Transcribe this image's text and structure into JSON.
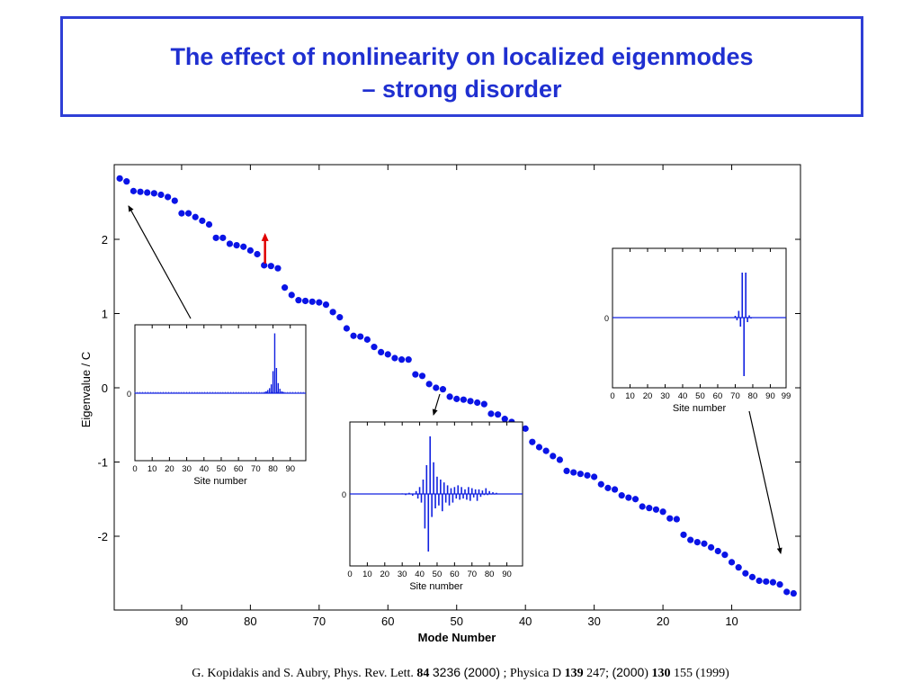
{
  "slide": {
    "title_line1": "The effect of nonlinearity on localized eigenmodes",
    "title_line2": "– strong disorder"
  },
  "citation": {
    "part1": "G. Kopidakis and S. Aubry, Phys. Rev. Lett. ",
    "vol1": "84",
    "page1": "3236",
    "year1": "(2000)",
    "part2": " ; Physica D ",
    "vol2": "139",
    "page2": " 247;  ",
    "year2": "(2000",
    "close": ")",
    "vol3": "130",
    "rest": " 155 (1999)"
  },
  "colors": {
    "title": "#1f2fd0",
    "dots": "#0a14e6",
    "trace": "#1020e0",
    "arrow_red": "#e00000"
  },
  "chart_data": [
    {
      "type": "scatter",
      "title": "",
      "xlabel": "Mode Number",
      "ylabel": "Eigenvalue / C",
      "xlim": [
        0,
        99
      ],
      "x_reversed": true,
      "ylim": [
        -3,
        3
      ],
      "xticks": [
        90,
        80,
        70,
        60,
        50,
        40,
        30,
        20,
        10
      ],
      "yticks": [
        2,
        1,
        0,
        -1,
        -2
      ],
      "grid": false,
      "x": [
        99,
        98,
        97,
        96,
        95,
        94,
        93,
        92,
        91,
        90,
        89,
        88,
        87,
        86,
        85,
        84,
        83,
        82,
        81,
        80,
        79,
        78,
        77,
        76,
        75,
        74,
        73,
        72,
        71,
        70,
        69,
        68,
        67,
        66,
        65,
        64,
        63,
        62,
        61,
        60,
        59,
        58,
        57,
        56,
        55,
        54,
        53,
        52,
        51,
        50,
        49,
        48,
        47,
        46,
        45,
        44,
        43,
        42,
        41,
        40,
        39,
        38,
        37,
        36,
        35,
        34,
        33,
        32,
        31,
        30,
        29,
        28,
        27,
        26,
        25,
        24,
        23,
        22,
        21,
        20,
        19,
        18,
        17,
        16,
        15,
        14,
        13,
        12,
        11,
        10,
        9,
        8,
        7,
        6,
        5,
        4,
        3,
        2,
        1
      ],
      "y": [
        2.82,
        2.78,
        2.65,
        2.64,
        2.63,
        2.62,
        2.6,
        2.57,
        2.52,
        2.35,
        2.35,
        2.3,
        2.25,
        2.2,
        2.02,
        2.02,
        1.94,
        1.92,
        1.9,
        1.85,
        1.8,
        1.65,
        1.64,
        1.61,
        1.35,
        1.25,
        1.18,
        1.17,
        1.16,
        1.15,
        1.12,
        1.02,
        0.95,
        0.8,
        0.7,
        0.69,
        0.65,
        0.55,
        0.48,
        0.45,
        0.4,
        0.38,
        0.38,
        0.18,
        0.16,
        0.05,
        0.0,
        -0.02,
        -0.12,
        -0.15,
        -0.16,
        -0.18,
        -0.2,
        -0.22,
        -0.35,
        -0.36,
        -0.42,
        -0.46,
        -0.52,
        -0.55,
        -0.73,
        -0.8,
        -0.85,
        -0.92,
        -0.97,
        -1.12,
        -1.14,
        -1.16,
        -1.18,
        -1.2,
        -1.3,
        -1.35,
        -1.37,
        -1.45,
        -1.48,
        -1.5,
        -1.6,
        -1.62,
        -1.64,
        -1.67,
        -1.76,
        -1.77,
        -1.98,
        -2.05,
        -2.08,
        -2.1,
        -2.15,
        -2.2,
        -2.25,
        -2.35,
        -2.42,
        -2.5,
        -2.55,
        -2.6,
        -2.61,
        -2.62,
        -2.65,
        -2.75,
        -2.77
      ],
      "annotations": [
        {
          "type": "arrow",
          "color": "red",
          "at_mode": 78,
          "direction": "up"
        }
      ]
    },
    {
      "type": "line",
      "xlabel": "Site number",
      "xticks": [
        0,
        10,
        20,
        30,
        40,
        50,
        60,
        70,
        80,
        90
      ],
      "yticks": [
        0
      ],
      "xlim": [
        0,
        99
      ],
      "description_values": {
        "x": [
          75,
          76,
          77,
          78,
          79,
          80,
          81,
          82,
          83,
          84,
          85,
          86
        ],
        "y": [
          0.02,
          0.03,
          0.05,
          0.08,
          0.14,
          0.35,
          0.95,
          0.4,
          0.16,
          0.07,
          0.03,
          0.02
        ]
      }
    },
    {
      "type": "line",
      "xlabel": "Site number",
      "xticks": [
        0,
        10,
        20,
        30,
        40,
        50,
        60,
        70,
        80,
        90
      ],
      "yticks": [
        0
      ],
      "xlim": [
        0,
        99
      ],
      "description_values": {
        "x": [
          30,
          32,
          34,
          36,
          38,
          39,
          40,
          41,
          42,
          43,
          44,
          45,
          46,
          47,
          48,
          49,
          50,
          51,
          52,
          53,
          54,
          55,
          56,
          57,
          58,
          59,
          60,
          61,
          62,
          63,
          64,
          65,
          66,
          67,
          68,
          69,
          70,
          71,
          72,
          73,
          74,
          75,
          76,
          77,
          78,
          79,
          80,
          81,
          82,
          83,
          84,
          85
        ],
        "y": [
          0.01,
          -0.02,
          0.02,
          -0.03,
          0.05,
          -0.08,
          0.12,
          -0.15,
          0.25,
          -0.6,
          0.5,
          -1.0,
          1.0,
          -0.4,
          0.55,
          -0.25,
          0.3,
          -0.2,
          0.25,
          -0.3,
          0.2,
          -0.15,
          0.15,
          -0.2,
          0.1,
          -0.15,
          0.12,
          -0.08,
          0.15,
          -0.1,
          0.12,
          -0.08,
          0.08,
          -0.1,
          0.12,
          -0.12,
          0.1,
          -0.06,
          0.08,
          -0.12,
          0.08,
          -0.05,
          0.06,
          -0.02,
          0.1,
          -0.02,
          0.05,
          -0.01,
          0.03,
          -0.01,
          0.02,
          0.0
        ]
      }
    },
    {
      "type": "line",
      "xlabel": "Site number",
      "xticks": [
        0,
        10,
        20,
        30,
        40,
        50,
        60,
        70,
        80,
        90,
        99
      ],
      "yticks": [
        0
      ],
      "xlim": [
        0,
        99
      ],
      "description_values": {
        "x": [
          70,
          71,
          72,
          73,
          74,
          75,
          76,
          77,
          78,
          79
        ],
        "y": [
          0.04,
          -0.06,
          0.15,
          -0.2,
          1.0,
          -1.3,
          1.0,
          -0.1,
          0.05,
          -0.02
        ]
      }
    }
  ],
  "insets": {
    "zero_label": "0",
    "xlabel": "Site number"
  }
}
